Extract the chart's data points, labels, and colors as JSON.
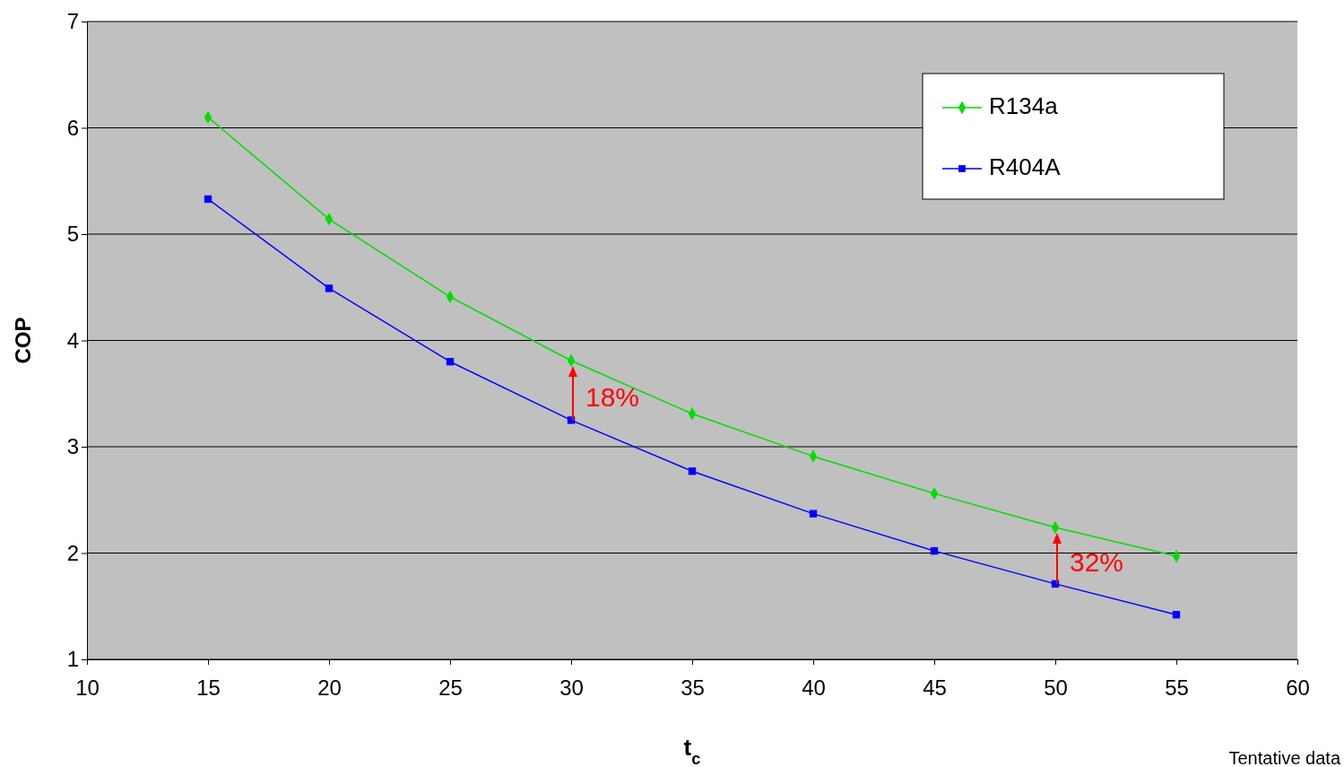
{
  "chart_data": {
    "type": "line",
    "xlabel": "t$_{c}$",
    "ylabel": "COP",
    "x": [
      15,
      20,
      25,
      30,
      35,
      40,
      45,
      50,
      55
    ],
    "series": [
      {
        "name": "R134a",
        "color": "#00dd00",
        "marker": "diamond",
        "values": [
          6.1,
          5.14,
          4.41,
          3.81,
          3.31,
          2.91,
          2.56,
          2.24,
          1.97
        ]
      },
      {
        "name": "R404A",
        "color": "#0000ff",
        "marker": "square",
        "values": [
          5.33,
          4.49,
          3.8,
          3.25,
          2.77,
          2.37,
          2.02,
          1.71,
          1.42
        ]
      }
    ],
    "xlim": [
      10,
      60
    ],
    "xticks": [
      10,
      15,
      20,
      25,
      30,
      35,
      40,
      45,
      50,
      55,
      60
    ],
    "ylim": [
      1,
      7
    ],
    "yticks": [
      1,
      2,
      3,
      4,
      5,
      6,
      7
    ],
    "grid": "y",
    "legend": "top right",
    "line_style": "solid",
    "annotations": [
      {
        "text": "18%",
        "x": 30,
        "y": 3.25
      },
      {
        "text": "32%",
        "x": 50,
        "y": 1.71
      },
      "Tentative data"
    ]
  }
}
